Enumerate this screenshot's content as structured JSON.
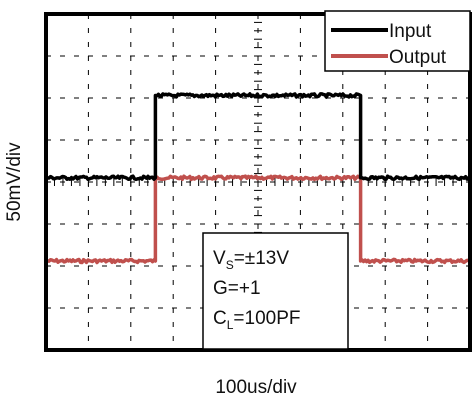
{
  "chart_data": {
    "type": "line",
    "title": "",
    "xlabel": "100us/div",
    "ylabel": "50mV/div",
    "grid": true,
    "grid_style": "dashed",
    "x_divisions": 10,
    "y_divisions": 8,
    "xlim": [
      0,
      10
    ],
    "ylim": [
      0,
      8
    ],
    "legend": {
      "position": "top-right"
    },
    "series": [
      {
        "name": "Input",
        "color": "#000000",
        "x": [
          0,
          2.58,
          2.58,
          7.42,
          7.42,
          10
        ],
        "y": [
          4.1,
          4.1,
          6.06,
          6.06,
          4.1,
          4.1
        ]
      },
      {
        "name": "Output",
        "color": "#C0504D",
        "x": [
          0,
          2.58,
          2.58,
          7.42,
          7.42,
          10
        ],
        "y": [
          2.12,
          2.12,
          4.1,
          4.1,
          2.12,
          2.12
        ]
      }
    ],
    "annotation": {
      "lines": [
        {
          "main": "V",
          "sub": "S",
          "rest": "=±13V"
        },
        {
          "main": "G=+1",
          "sub": "",
          "rest": ""
        },
        {
          "main": "C",
          "sub": "L",
          "rest": "=100PF"
        }
      ]
    }
  }
}
